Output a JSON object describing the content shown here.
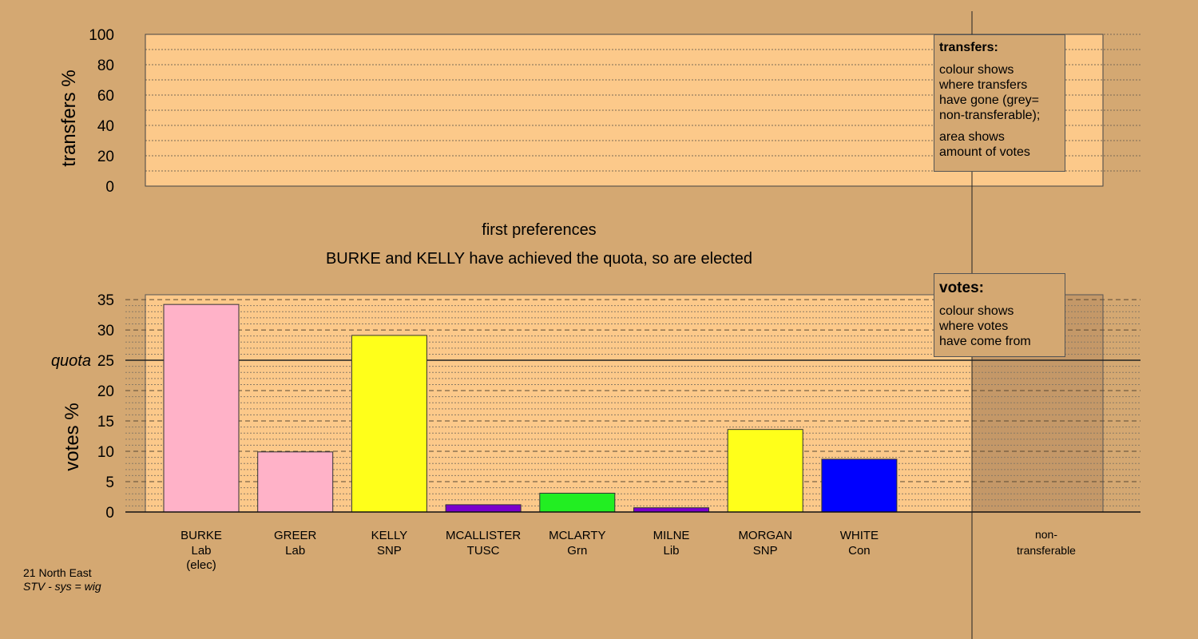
{
  "chart_data": [
    {
      "type": "bar",
      "title": "",
      "ylabel": "transfers %",
      "ylim": [
        0,
        100
      ],
      "yticks": [
        "0",
        "20",
        "40",
        "60",
        "80",
        "100"
      ],
      "grid": true,
      "values": []
    },
    {
      "type": "bar",
      "title": "first preferences",
      "subtitle": "BURKE and KELLY have achieved the quota, so are elected",
      "ylabel": "votes %",
      "ylim": [
        0,
        36
      ],
      "yticks": [
        "0",
        "5",
        "10",
        "15",
        "20",
        "25",
        "30",
        "35"
      ],
      "quota_label": "quota",
      "quota": 25,
      "grid": true,
      "categories": [
        {
          "name": "BURKE",
          "party": "Lab",
          "note": "(elec)",
          "value": 34.2,
          "color": "#ffb2c8"
        },
        {
          "name": "GREER",
          "party": "Lab",
          "note": "",
          "value": 9.9,
          "color": "#ffb2c8"
        },
        {
          "name": "KELLY",
          "party": "SNP",
          "note": "",
          "value": 29.1,
          "color": "#ffff1a"
        },
        {
          "name": "MCALLISTER",
          "party": "TUSC",
          "note": "",
          "value": 1.2,
          "color": "#7a00cc"
        },
        {
          "name": "MCLARTY",
          "party": "Grn",
          "note": "",
          "value": 3.1,
          "color": "#22ee22"
        },
        {
          "name": "MILNE",
          "party": "Lib",
          "note": "",
          "value": 0.7,
          "color": "#7a00cc"
        },
        {
          "name": "MORGAN",
          "party": "SNP",
          "note": "",
          "value": 13.6,
          "color": "#ffff1a"
        },
        {
          "name": "WHITE",
          "party": "Con",
          "note": "",
          "value": 8.7,
          "color": "#0000ff"
        }
      ],
      "extra_category": {
        "line1": "non-",
        "line2": "transferable",
        "value": 0
      }
    }
  ],
  "transfers_legend": {
    "heading": "transfers:",
    "lines1": [
      "colour shows",
      "where transfers",
      "have gone (grey=",
      "non-transferable);"
    ],
    "lines2": [
      "area shows",
      "amount of votes"
    ]
  },
  "votes_legend": {
    "heading": "votes:",
    "lines": [
      "colour shows",
      "where votes",
      "have come from"
    ]
  },
  "footer": {
    "line1": "21 North East",
    "line2": "STV - sys = wig"
  },
  "colors": {
    "background": "#d4a872",
    "panel": "#fcc98a",
    "shaded": "#c49868"
  }
}
